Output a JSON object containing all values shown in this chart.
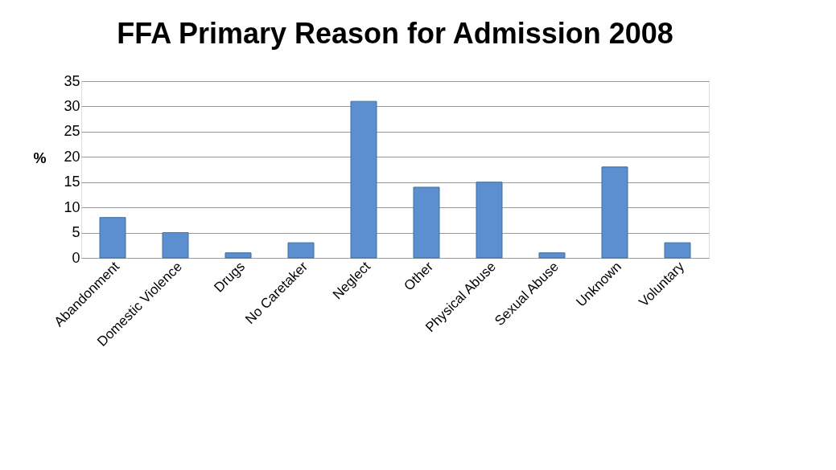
{
  "chart_data": {
    "type": "bar",
    "title": "FFA Primary Reason for Admission  2008",
    "ylabel": "%",
    "categories": [
      "Abandonment",
      "Domestic Violence",
      "Drugs",
      "No Caretaker",
      "Neglect",
      "Other",
      "Physical Abuse",
      "Sexual Abuse",
      "Unknown",
      "Voluntary"
    ],
    "values": [
      8,
      5,
      1,
      3,
      31,
      14,
      15,
      1,
      18,
      3
    ],
    "color": "#5b8fcf",
    "ylim": [
      0,
      35
    ],
    "yticks": [
      0,
      5,
      10,
      15,
      20,
      25,
      30,
      35
    ],
    "grid": "y"
  }
}
